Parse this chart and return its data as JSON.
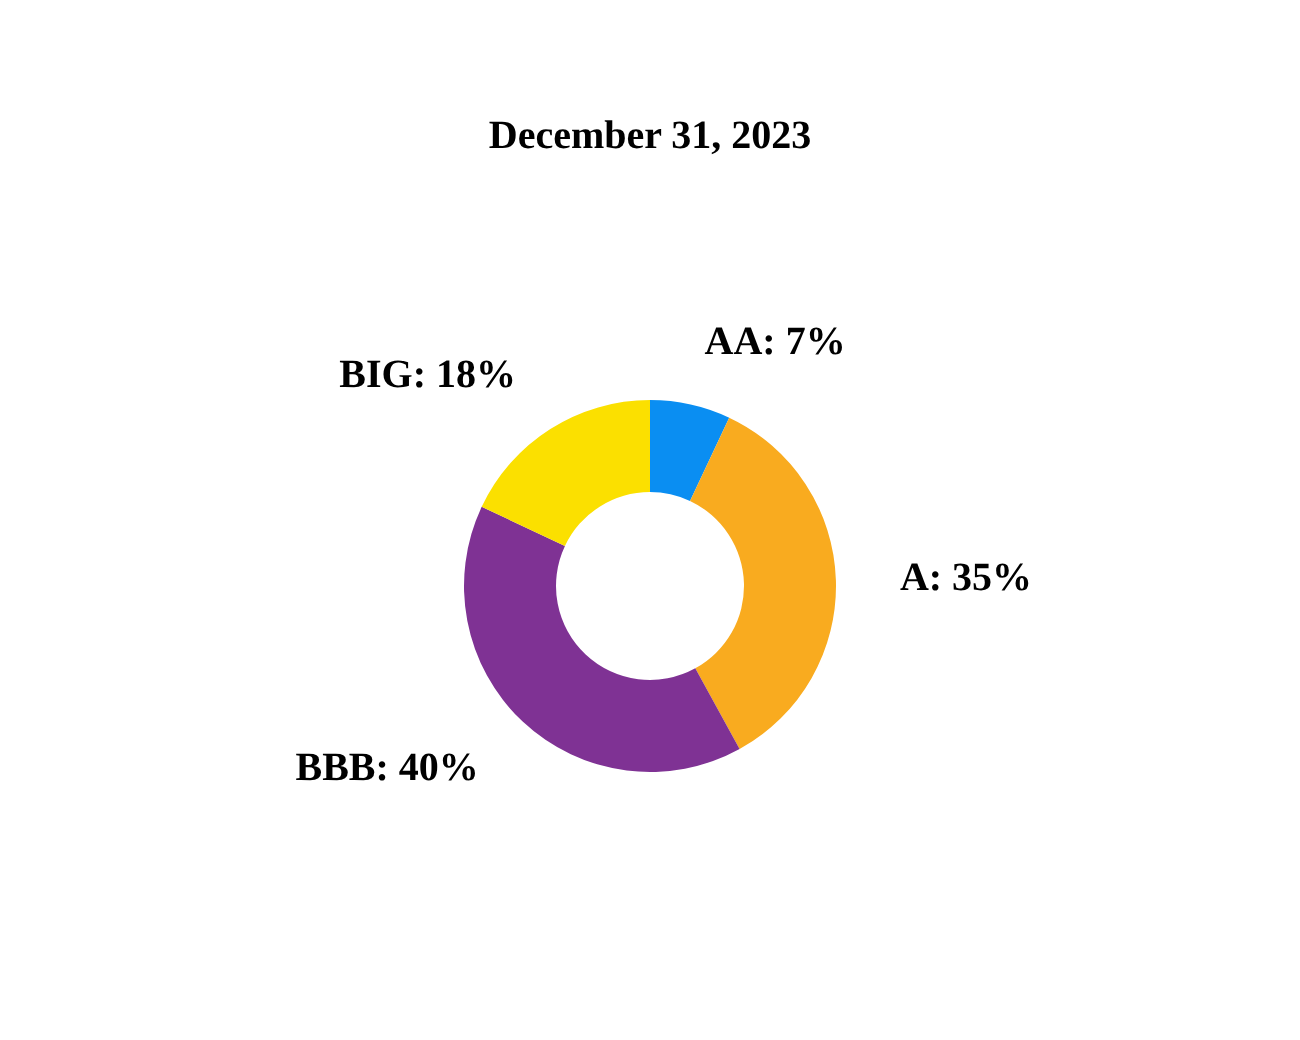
{
  "chart_data": {
    "type": "donut",
    "title": "December 31, 2023",
    "categories": [
      "AA",
      "A",
      "BBB",
      "BIG"
    ],
    "values": [
      7,
      35,
      40,
      18
    ],
    "value_labels": [
      "7%",
      "35%",
      "40%",
      "18%"
    ],
    "colors": [
      "#0a8ef2",
      "#f9ab1f",
      "#7f3294",
      "#fbe000"
    ],
    "legend": false
  }
}
